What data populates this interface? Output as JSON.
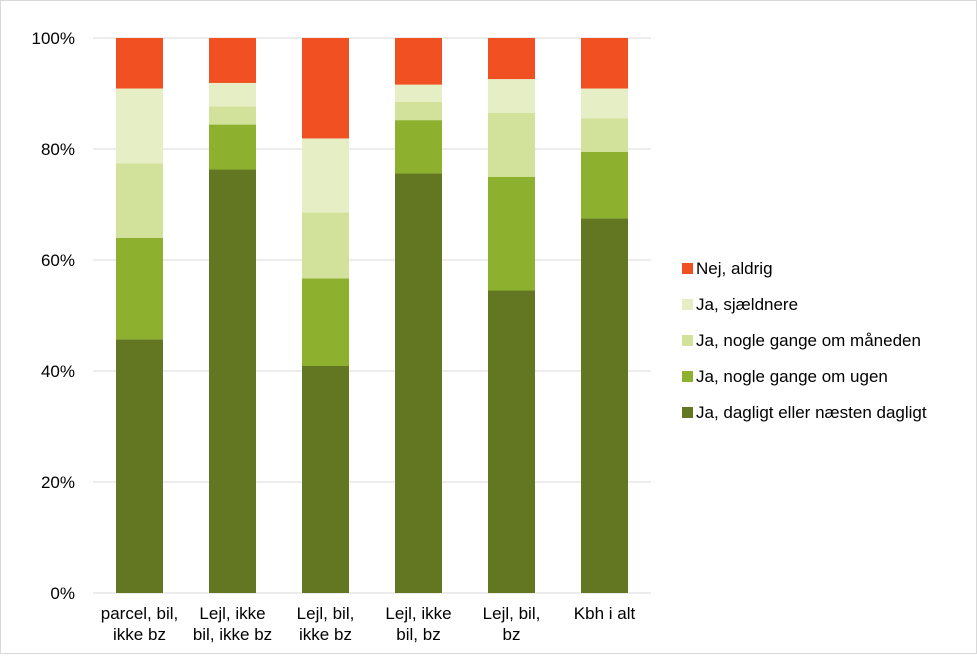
{
  "chart_data": {
    "type": "bar",
    "stacked": true,
    "percent": true,
    "categories": [
      [
        "parcel, bil,",
        "ikke bz"
      ],
      [
        "Lejl, ikke",
        "bil, ikke bz"
      ],
      [
        "Lejl, bil,",
        "ikke bz"
      ],
      [
        "Lejl, ikke",
        "bil, bz"
      ],
      [
        "Lejl, bil,",
        "bz"
      ],
      [
        "Kbh i alt"
      ]
    ],
    "yticks": [
      "0%",
      "20%",
      "40%",
      "60%",
      "80%",
      "100%"
    ],
    "ylim": [
      0,
      100
    ],
    "grid": true,
    "legend_position": "right",
    "series": [
      {
        "name": "Ja, dagligt eller næsten dagligt",
        "color": "#637621",
        "values": [
          45.7,
          76.3,
          40.9,
          75.6,
          54.5,
          67.5
        ]
      },
      {
        "name": "Ja, nogle gange om ugen",
        "color": "#8db12f",
        "values": [
          18.3,
          8.1,
          15.8,
          9.6,
          20.5,
          12.0
        ]
      },
      {
        "name": "Ja, nogle gange om måneden",
        "color": "#d3e29a",
        "values": [
          13.4,
          3.3,
          11.9,
          3.3,
          11.5,
          6.0
        ]
      },
      {
        "name": "Ja, sjældnere",
        "color": "#e6eec6",
        "values": [
          13.5,
          4.2,
          13.3,
          3.1,
          6.1,
          5.4
        ]
      },
      {
        "name": "Nej, aldrig",
        "color": "#f15122",
        "values": [
          9.1,
          8.1,
          18.1,
          8.4,
          7.4,
          9.1
        ]
      }
    ],
    "legend_order": [
      4,
      3,
      2,
      1,
      0
    ]
  }
}
